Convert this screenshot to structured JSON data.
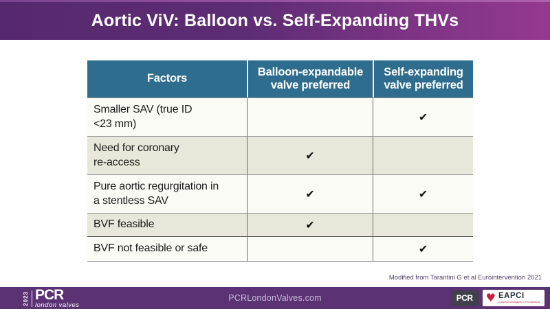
{
  "header": {
    "title": "Aortic ViV: Balloon vs. Self-Expanding THVs"
  },
  "attribution": "Modified from Tarantini G et al Eurointervention 2021",
  "table": {
    "columns": {
      "factors": "Factors",
      "balloon": "Balloon-expandable\nvalve preferred",
      "self": "Self-expanding\nvalve preferred"
    },
    "check_glyph": "✔",
    "rows": [
      {
        "factor": "Smaller SAV (true ID\n<23 mm)",
        "balloon": "",
        "self": "✔"
      },
      {
        "factor": "Need for coronary\nre-access",
        "balloon": "✔",
        "self": ""
      },
      {
        "factor": "Pure aortic regurgitation in\na stentless SAV",
        "balloon": "✔",
        "self": "✔"
      },
      {
        "factor": "BVF feasible",
        "balloon": "✔",
        "self": ""
      },
      {
        "factor": "BVF not feasible or safe",
        "balloon": "",
        "self": "✔"
      }
    ]
  },
  "footer": {
    "year": "2023",
    "brand": "PCR",
    "brand_tagline": "london valves",
    "website": "PCRLondonValves.com",
    "pcr_badge": "PCR",
    "eapci_label": "EAPCI",
    "eapci_tagline": "European Association of Percutaneous Cardiovascular Interventions"
  },
  "colors": {
    "header_gradient_left": "#56286d",
    "header_gradient_right": "#94398f",
    "table_header_bg": "#2e6d8d",
    "row_bg": "#fbfbf6",
    "row_alt_bg": "#e8e8da",
    "footer_bg": "#5b3273",
    "accent_red": "#c5203c",
    "check_color": "#111111"
  }
}
